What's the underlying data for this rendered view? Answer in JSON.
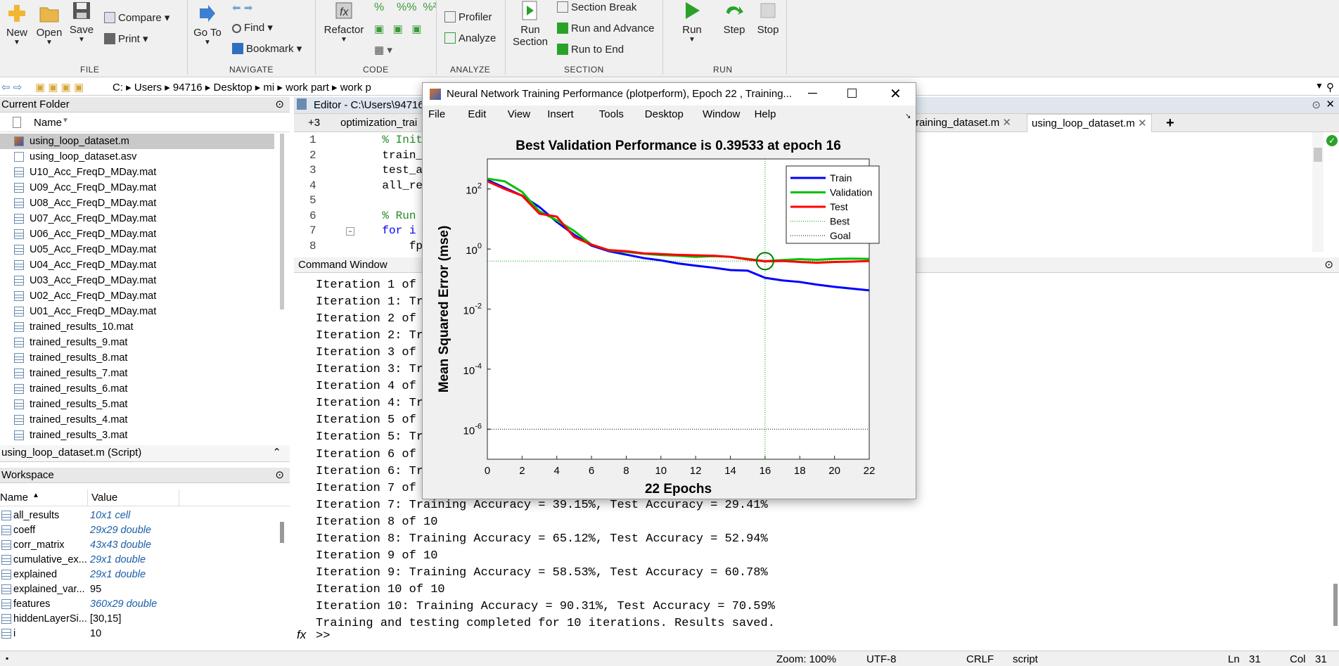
{
  "ribbon": {
    "file": {
      "new": "New",
      "open": "Open",
      "save": "Save",
      "compare": "Compare",
      "print": "Print",
      "group": "FILE"
    },
    "navigate": {
      "goto": "Go To",
      "find": "Find",
      "bookmark": "Bookmark",
      "group": "NAVIGATE"
    },
    "code": {
      "refactor": "Refactor",
      "group": "CODE"
    },
    "analyze": {
      "profiler": "Profiler",
      "analyze": "Analyze",
      "group": "ANALYZE"
    },
    "section": {
      "run_section_1": "Run",
      "run_section_2": "Section",
      "section_break": "Section Break",
      "run_advance": "Run and Advance",
      "run_end": "Run to End",
      "group": "SECTION"
    },
    "run": {
      "run": "Run",
      "step": "Step",
      "stop": "Stop",
      "group": "RUN"
    }
  },
  "address": [
    "C:",
    "Users",
    "94716",
    "Desktop",
    "mi",
    "work part",
    "work p"
  ],
  "current_folder": {
    "title": "Current Folder",
    "col_name": "Name",
    "files": [
      "using_loop_dataset.m",
      "using_loop_dataset.asv",
      "U10_Acc_FreqD_MDay.mat",
      "U09_Acc_FreqD_MDay.mat",
      "U08_Acc_FreqD_MDay.mat",
      "U07_Acc_FreqD_MDay.mat",
      "U06_Acc_FreqD_MDay.mat",
      "U05_Acc_FreqD_MDay.mat",
      "U04_Acc_FreqD_MDay.mat",
      "U03_Acc_FreqD_MDay.mat",
      "U02_Acc_FreqD_MDay.mat",
      "U01_Acc_FreqD_MDay.mat",
      "trained_results_10.mat",
      "trained_results_9.mat",
      "trained_results_8.mat",
      "trained_results_7.mat",
      "trained_results_6.mat",
      "trained_results_5.mat",
      "trained_results_4.mat",
      "trained_results_3.mat"
    ],
    "details": "using_loop_dataset.m  (Script)"
  },
  "workspace": {
    "title": "Workspace",
    "col_name": "Name",
    "col_value": "Value",
    "vars": [
      {
        "name": "all_results",
        "value": "10x1 cell"
      },
      {
        "name": "coeff",
        "value": "29x29 double"
      },
      {
        "name": "corr_matrix",
        "value": "43x43 double"
      },
      {
        "name": "cumulative_ex...",
        "value": "29x1 double"
      },
      {
        "name": "explained",
        "value": "29x1 double"
      },
      {
        "name": "explained_var...",
        "value": "95"
      },
      {
        "name": "features",
        "value": "360x29 double"
      },
      {
        "name": "hiddenLayerSi...",
        "value": "[30,15]"
      },
      {
        "name": "i",
        "value": "10"
      }
    ]
  },
  "editor": {
    "title": "Editor - C:\\Users\\94716",
    "tabs": [
      "+3",
      "optimization_trai",
      "raining_dataset.m",
      "using_loop_dataset.m"
    ],
    "add_tab": "+",
    "line_numbers": [
      "1",
      "2",
      "3",
      "4",
      "5",
      "6",
      "7",
      "8"
    ],
    "lines": [
      "    % Initia",
      "    train_ac",
      "    test_acc",
      "    all_resu",
      "",
      "    % Run th",
      "    for i = ",
      "        fpri"
    ]
  },
  "command_window": {
    "title": "Command Window",
    "lines": [
      "Iteration 1 of 1",
      "Iteration 1: Tra",
      "Iteration 2 of 1",
      "Iteration 2: Tra",
      "Iteration 3 of 1",
      "Iteration 3: Tra",
      "Iteration 4 of 1",
      "Iteration 4: Tra",
      "Iteration 5 of 1",
      "Iteration 5: Tra",
      "Iteration 6 of 1",
      "Iteration 6: Tra",
      "Iteration 7 of 1",
      "Iteration 7: Training Accuracy = 39.15%, Test Accuracy = 29.41%",
      "Iteration 8 of 10",
      "Iteration 8: Training Accuracy = 65.12%, Test Accuracy = 52.94%",
      "Iteration 9 of 10",
      "Iteration 9: Training Accuracy = 58.53%, Test Accuracy = 60.78%",
      "Iteration 10 of 10",
      "Iteration 10: Training Accuracy = 90.31%, Test Accuracy = 70.59%",
      "Training and testing completed for 10 iterations. Results saved."
    ],
    "prompt": ">>",
    "fx": "fx"
  },
  "figure": {
    "title": "Neural Network Training Performance (plotperform), Epoch 22 , Training...",
    "menu": [
      "File",
      "Edit",
      "View",
      "Insert",
      "Tools",
      "Desktop",
      "Window",
      "Help"
    ]
  },
  "status": {
    "zoom": "Zoom: 100%",
    "encoding": "UTF-8",
    "eol": "CRLF",
    "type": "script",
    "ln_label": "Ln",
    "ln": "31",
    "col_label": "Col",
    "col": "31"
  },
  "chart_data": {
    "type": "line",
    "title": "Best Validation Performance is 0.39533 at epoch 16",
    "xlabel": "22 Epochs",
    "ylabel": "Mean Squared Error  (mse)",
    "xlim": [
      0,
      22
    ],
    "ylim_log10": [
      -7,
      3
    ],
    "xticks": [
      "0",
      "2",
      "4",
      "6",
      "8",
      "10",
      "12",
      "14",
      "16",
      "18",
      "20",
      "22"
    ],
    "yticks": [
      {
        "base": "10",
        "exp": "2"
      },
      {
        "base": "10",
        "exp": "0"
      },
      {
        "base": "10",
        "exp": "-2"
      },
      {
        "base": "10",
        "exp": "-4"
      },
      {
        "base": "10",
        "exp": "-6"
      }
    ],
    "legend_position": "top-right",
    "x": [
      0,
      1,
      2,
      3,
      4,
      5,
      6,
      7,
      8,
      9,
      10,
      11,
      12,
      13,
      14,
      15,
      16,
      17,
      18,
      19,
      20,
      21,
      22
    ],
    "series": [
      {
        "name": "Train",
        "color": "#0000ff",
        "values": [
          200,
          110,
          60,
          25,
          8,
          3,
          1.3,
          0.85,
          0.65,
          0.5,
          0.42,
          0.33,
          0.28,
          0.24,
          0.2,
          0.19,
          0.11,
          0.09,
          0.08,
          0.065,
          0.055,
          0.048,
          0.042
        ]
      },
      {
        "name": "Validation",
        "color": "#00c000",
        "values": [
          220,
          180,
          80,
          18,
          9,
          4,
          1.4,
          0.9,
          0.8,
          0.7,
          0.63,
          0.6,
          0.55,
          0.58,
          0.55,
          0.47,
          0.395,
          0.43,
          0.46,
          0.44,
          0.47,
          0.48,
          0.47
        ]
      },
      {
        "name": "Test",
        "color": "#ff0000",
        "values": [
          180,
          100,
          60,
          15,
          12,
          2.5,
          1.4,
          0.92,
          0.85,
          0.72,
          0.68,
          0.64,
          0.62,
          0.6,
          0.55,
          0.45,
          0.39,
          0.4,
          0.37,
          0.35,
          0.37,
          0.38,
          0.4
        ]
      }
    ],
    "best": {
      "name": "Best",
      "epoch": 16,
      "value": 0.39533
    },
    "goal": {
      "name": "Goal",
      "value": 1e-06
    }
  }
}
